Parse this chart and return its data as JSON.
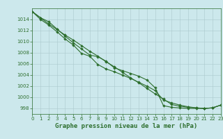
{
  "title": "Graphe pression niveau de la mer (hPa)",
  "bg_color": "#cce8ec",
  "grid_color": "#aac8cc",
  "line_color": "#2d6e2d",
  "x_hours": [
    0,
    1,
    2,
    3,
    4,
    5,
    6,
    7,
    8,
    9,
    10,
    11,
    12,
    13,
    14,
    15,
    16,
    17,
    18,
    19,
    20,
    21,
    22,
    23
  ],
  "line1": [
    1015.4,
    1014.3,
    1013.2,
    1012.2,
    1011.2,
    1010.3,
    1009.3,
    1008.3,
    1007.4,
    1006.4,
    1005.5,
    1004.5,
    1003.5,
    1002.6,
    1001.6,
    1000.6,
    999.7,
    998.7,
    998.4,
    998.2,
    998.1,
    998.0,
    998.1,
    998.6
  ],
  "line2": [
    1015.4,
    1014.3,
    1013.6,
    1012.3,
    1011.0,
    1009.8,
    1008.7,
    1007.6,
    1007.3,
    1006.5,
    1005.3,
    1004.8,
    1004.3,
    1003.8,
    1003.1,
    1001.7,
    998.5,
    998.2,
    998.1,
    998.0,
    998.0,
    998.0,
    998.1,
    998.6
  ],
  "line3": [
    1015.4,
    1014.0,
    1013.0,
    1011.8,
    1010.5,
    1009.4,
    1007.9,
    1007.4,
    1005.9,
    1005.1,
    1004.6,
    1004.0,
    1003.4,
    1002.7,
    1002.0,
    1001.2,
    999.5,
    999.0,
    998.6,
    998.3,
    998.1,
    998.0,
    998.1,
    998.6
  ],
  "ylim": [
    997.0,
    1016.0
  ],
  "yticks": [
    998,
    1000,
    1002,
    1004,
    1006,
    1008,
    1010,
    1012,
    1014
  ],
  "xlim": [
    0,
    23
  ],
  "xticks": [
    0,
    1,
    2,
    3,
    4,
    5,
    6,
    7,
    8,
    9,
    10,
    11,
    12,
    13,
    14,
    15,
    16,
    17,
    18,
    19,
    20,
    21,
    22,
    23
  ],
  "markersize": 2.0,
  "linewidth": 0.8,
  "title_fontsize": 6.5,
  "tick_fontsize": 5.0,
  "label_color": "#2d6e2d"
}
